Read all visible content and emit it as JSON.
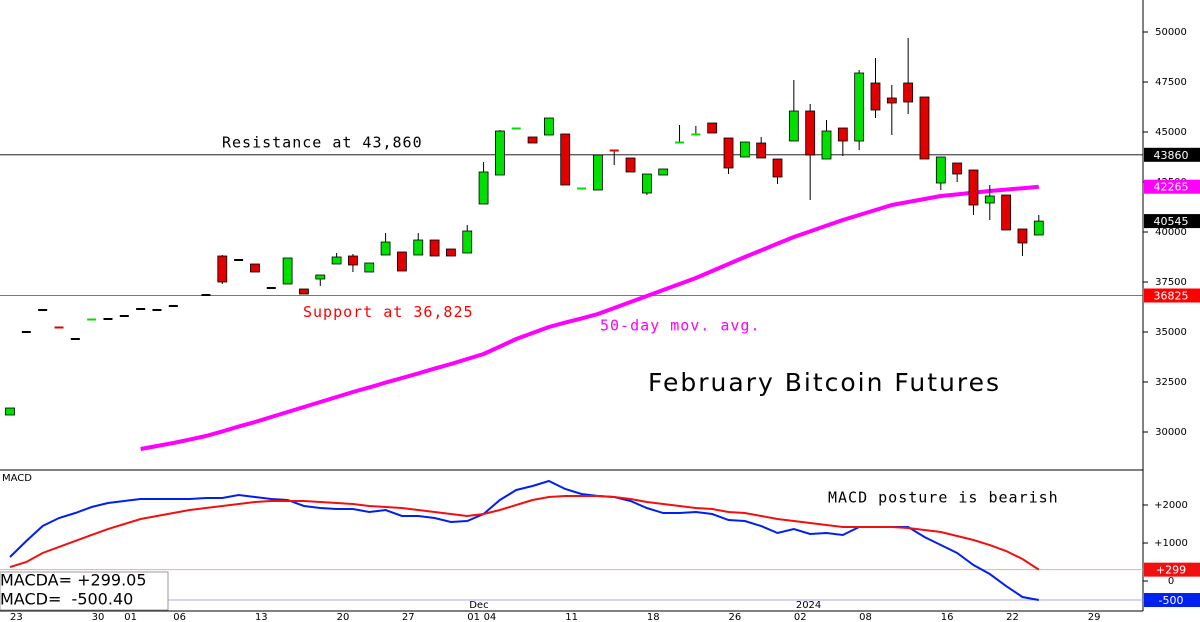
{
  "chart_data": [
    {
      "type": "candlestick",
      "title": "February Bitcoin Futures",
      "categories": [
        "23",
        null,
        null,
        null,
        null,
        "30",
        null,
        "01",
        null,
        null,
        "06",
        null,
        null,
        null,
        null,
        "13",
        null,
        null,
        null,
        null,
        "20",
        null,
        null,
        null,
        "27",
        null,
        null,
        null,
        "01",
        "04",
        null,
        null,
        null,
        null,
        "11",
        null,
        null,
        null,
        null,
        "18",
        null,
        null,
        null,
        null,
        "26",
        null,
        null,
        null,
        "02",
        null,
        null,
        null,
        "08",
        null,
        null,
        null,
        null,
        "16",
        null,
        null,
        null,
        "22",
        null,
        null,
        null,
        null,
        "29"
      ],
      "month_labels": [
        null,
        null,
        null,
        null,
        null,
        null,
        null,
        null,
        null,
        null,
        null,
        null,
        null,
        null,
        null,
        null,
        null,
        null,
        null,
        null,
        null,
        null,
        null,
        null,
        null,
        null,
        null,
        null,
        "Dec",
        null,
        null,
        null,
        null,
        null,
        null,
        null,
        null,
        null,
        null,
        null,
        null,
        null,
        null,
        null,
        null,
        null,
        null,
        null,
        "2024",
        null,
        null,
        null,
        null,
        null,
        null,
        null,
        null,
        null,
        null,
        null,
        null,
        null,
        null,
        null,
        null,
        null,
        null
      ],
      "open": [
        30850,
        35000,
        36100,
        35250,
        34650,
        35600,
        35650,
        35800,
        36150,
        36100,
        36300,
        null,
        36850,
        38800,
        38600,
        38400,
        37200,
        37400,
        37150,
        37650,
        38400,
        38800,
        38000,
        38850,
        39000,
        38850,
        39600,
        39150,
        38950,
        41400,
        42850,
        45150,
        44750,
        44850,
        44900,
        42150,
        42100,
        44100,
        43700,
        41950,
        42850,
        44450,
        44850,
        45450,
        44700,
        43750,
        44450,
        43650,
        44550,
        46050,
        43650,
        45200,
        44550,
        47450,
        46700,
        47450,
        46750,
        42450,
        43450,
        43100,
        41450,
        41850,
        40150,
        39850,
        null,
        null,
        null
      ],
      "high": [
        31200,
        35000,
        36100,
        35250,
        34650,
        35650,
        35650,
        35800,
        36150,
        36100,
        36300,
        null,
        36850,
        38850,
        38600,
        38400,
        37200,
        38700,
        37150,
        37850,
        38950,
        38900,
        38450,
        39950,
        39000,
        39950,
        39600,
        39150,
        40350,
        43500,
        45100,
        45200,
        44750,
        45700,
        44900,
        42200,
        43850,
        44100,
        43700,
        42900,
        43150,
        45350,
        45300,
        45450,
        44700,
        44500,
        44750,
        43650,
        47600,
        46400,
        45600,
        45200,
        48100,
        48700,
        47350,
        49700,
        46750,
        43750,
        43450,
        43100,
        42350,
        41850,
        40150,
        40850,
        null,
        null,
        null
      ],
      "low": [
        30850,
        35000,
        36100,
        35200,
        34650,
        35600,
        35650,
        35800,
        36150,
        36100,
        36300,
        null,
        36850,
        37400,
        38600,
        38000,
        37200,
        37400,
        36900,
        37300,
        38400,
        38000,
        38000,
        38850,
        38050,
        38850,
        38800,
        38800,
        38950,
        41400,
        42850,
        45150,
        44450,
        44850,
        42350,
        42150,
        42100,
        43350,
        43000,
        41850,
        42850,
        44450,
        44850,
        44950,
        42900,
        43750,
        43700,
        42400,
        44550,
        41600,
        43650,
        43800,
        44100,
        45700,
        44850,
        45900,
        43650,
        42100,
        42500,
        40850,
        40600,
        40100,
        38800,
        39850,
        null,
        null,
        null
      ],
      "close": [
        31200,
        35000,
        36100,
        35200,
        34650,
        35650,
        35650,
        35800,
        36150,
        36100,
        36300,
        null,
        36850,
        37500,
        38600,
        38000,
        37200,
        38700,
        36900,
        37850,
        38750,
        38350,
        38450,
        39500,
        38050,
        39600,
        38800,
        38800,
        40050,
        43000,
        45050,
        45200,
        44450,
        45700,
        42350,
        42200,
        43850,
        44050,
        43000,
        42900,
        43150,
        44500,
        44900,
        44950,
        43200,
        44500,
        43700,
        42750,
        46050,
        43850,
        45050,
        44550,
        47950,
        46100,
        46450,
        46500,
        43650,
        43750,
        42900,
        41350,
        41800,
        40100,
        39450,
        40545,
        null,
        null,
        null
      ],
      "up_color": "#00e000",
      "down_color": "#e00000",
      "ylim": [
        28100,
        51600
      ],
      "yticks": [
        30000,
        32500,
        35000,
        37500,
        40000,
        42500,
        45000,
        47500,
        50000
      ],
      "series": [
        {
          "name": "50-day mov. avg.",
          "color": "#ff00ff",
          "values": [
            null,
            null,
            null,
            null,
            null,
            null,
            null,
            null,
            29150,
            29300,
            29450,
            29620,
            29800,
            30030,
            30270,
            30500,
            30750,
            31000,
            31250,
            31500,
            31750,
            32000,
            32230,
            32470,
            32700,
            32930,
            33170,
            33400,
            33650,
            33900,
            34270,
            34650,
            34950,
            35250,
            35470,
            35680,
            35900,
            36200,
            36500,
            36800,
            37100,
            37400,
            37700,
            38050,
            38400,
            38750,
            39080,
            39420,
            39750,
            40030,
            40320,
            40600,
            40850,
            41100,
            41350,
            41500,
            41650,
            41800,
            41880,
            41970,
            42050,
            42120,
            42190,
            42265,
            null,
            null,
            null
          ]
        }
      ],
      "levels": [
        {
          "label": "Resistance at 43,860",
          "value": 43860,
          "color": "#000000"
        },
        {
          "label": "Support at 36,825",
          "value": 36825,
          "color": "#ff0000"
        }
      ]
    },
    {
      "type": "line",
      "title": "MACD",
      "annotation": "MACD posture is bearish",
      "ylim": [
        -763,
        2921
      ],
      "yticks": [
        {
          "value": 2000,
          "label": "+2000"
        },
        {
          "value": 1000,
          "label": "+1000"
        },
        0
      ],
      "series": [
        {
          "name": "MACD",
          "color": "#0020f0",
          "readout": "MACD=  -500.40",
          "axis_label": "-500",
          "line_color": "#a8a8f0",
          "values": [
            632,
            1053,
            1447,
            1658,
            1789,
            1947,
            2053,
            2105,
            2158,
            2158,
            2158,
            2158,
            2184,
            2184,
            2263,
            2210,
            2158,
            2132,
            1974,
            1921,
            1895,
            1895,
            1816,
            1868,
            1711,
            1711,
            1658,
            1553,
            1579,
            1763,
            2132,
            2395,
            2500,
            2632,
            2421,
            2289,
            2237,
            2210,
            2105,
            1921,
            1789,
            1789,
            1816,
            1763,
            1605,
            1579,
            1447,
            1263,
            1368,
            1237,
            1263,
            1211,
            1421,
            1421,
            1421,
            1421,
            1158,
            947,
            737,
            421,
            184,
            -132,
            -421,
            -500.4,
            null,
            null,
            null
          ]
        },
        {
          "name": "MACDA",
          "color": "#f01010",
          "readout": "MACDA= +299.05",
          "axis_label": "+299",
          "line_color": "#f0a8a8",
          "values": [
            368,
            500,
            737,
            895,
            1053,
            1211,
            1368,
            1500,
            1632,
            1711,
            1789,
            1868,
            1921,
            1974,
            2026,
            2079,
            2105,
            2105,
            2105,
            2079,
            2053,
            2026,
            1974,
            1947,
            1921,
            1868,
            1816,
            1763,
            1711,
            1763,
            1868,
            2000,
            2132,
            2210,
            2237,
            2237,
            2237,
            2210,
            2158,
            2079,
            2026,
            1974,
            1921,
            1895,
            1816,
            1789,
            1711,
            1632,
            1579,
            1526,
            1474,
            1421,
            1421,
            1421,
            1421,
            1395,
            1342,
            1289,
            1184,
            1079,
            947,
            789,
            579,
            299.05,
            null,
            null,
            null
          ]
        }
      ]
    }
  ]
}
